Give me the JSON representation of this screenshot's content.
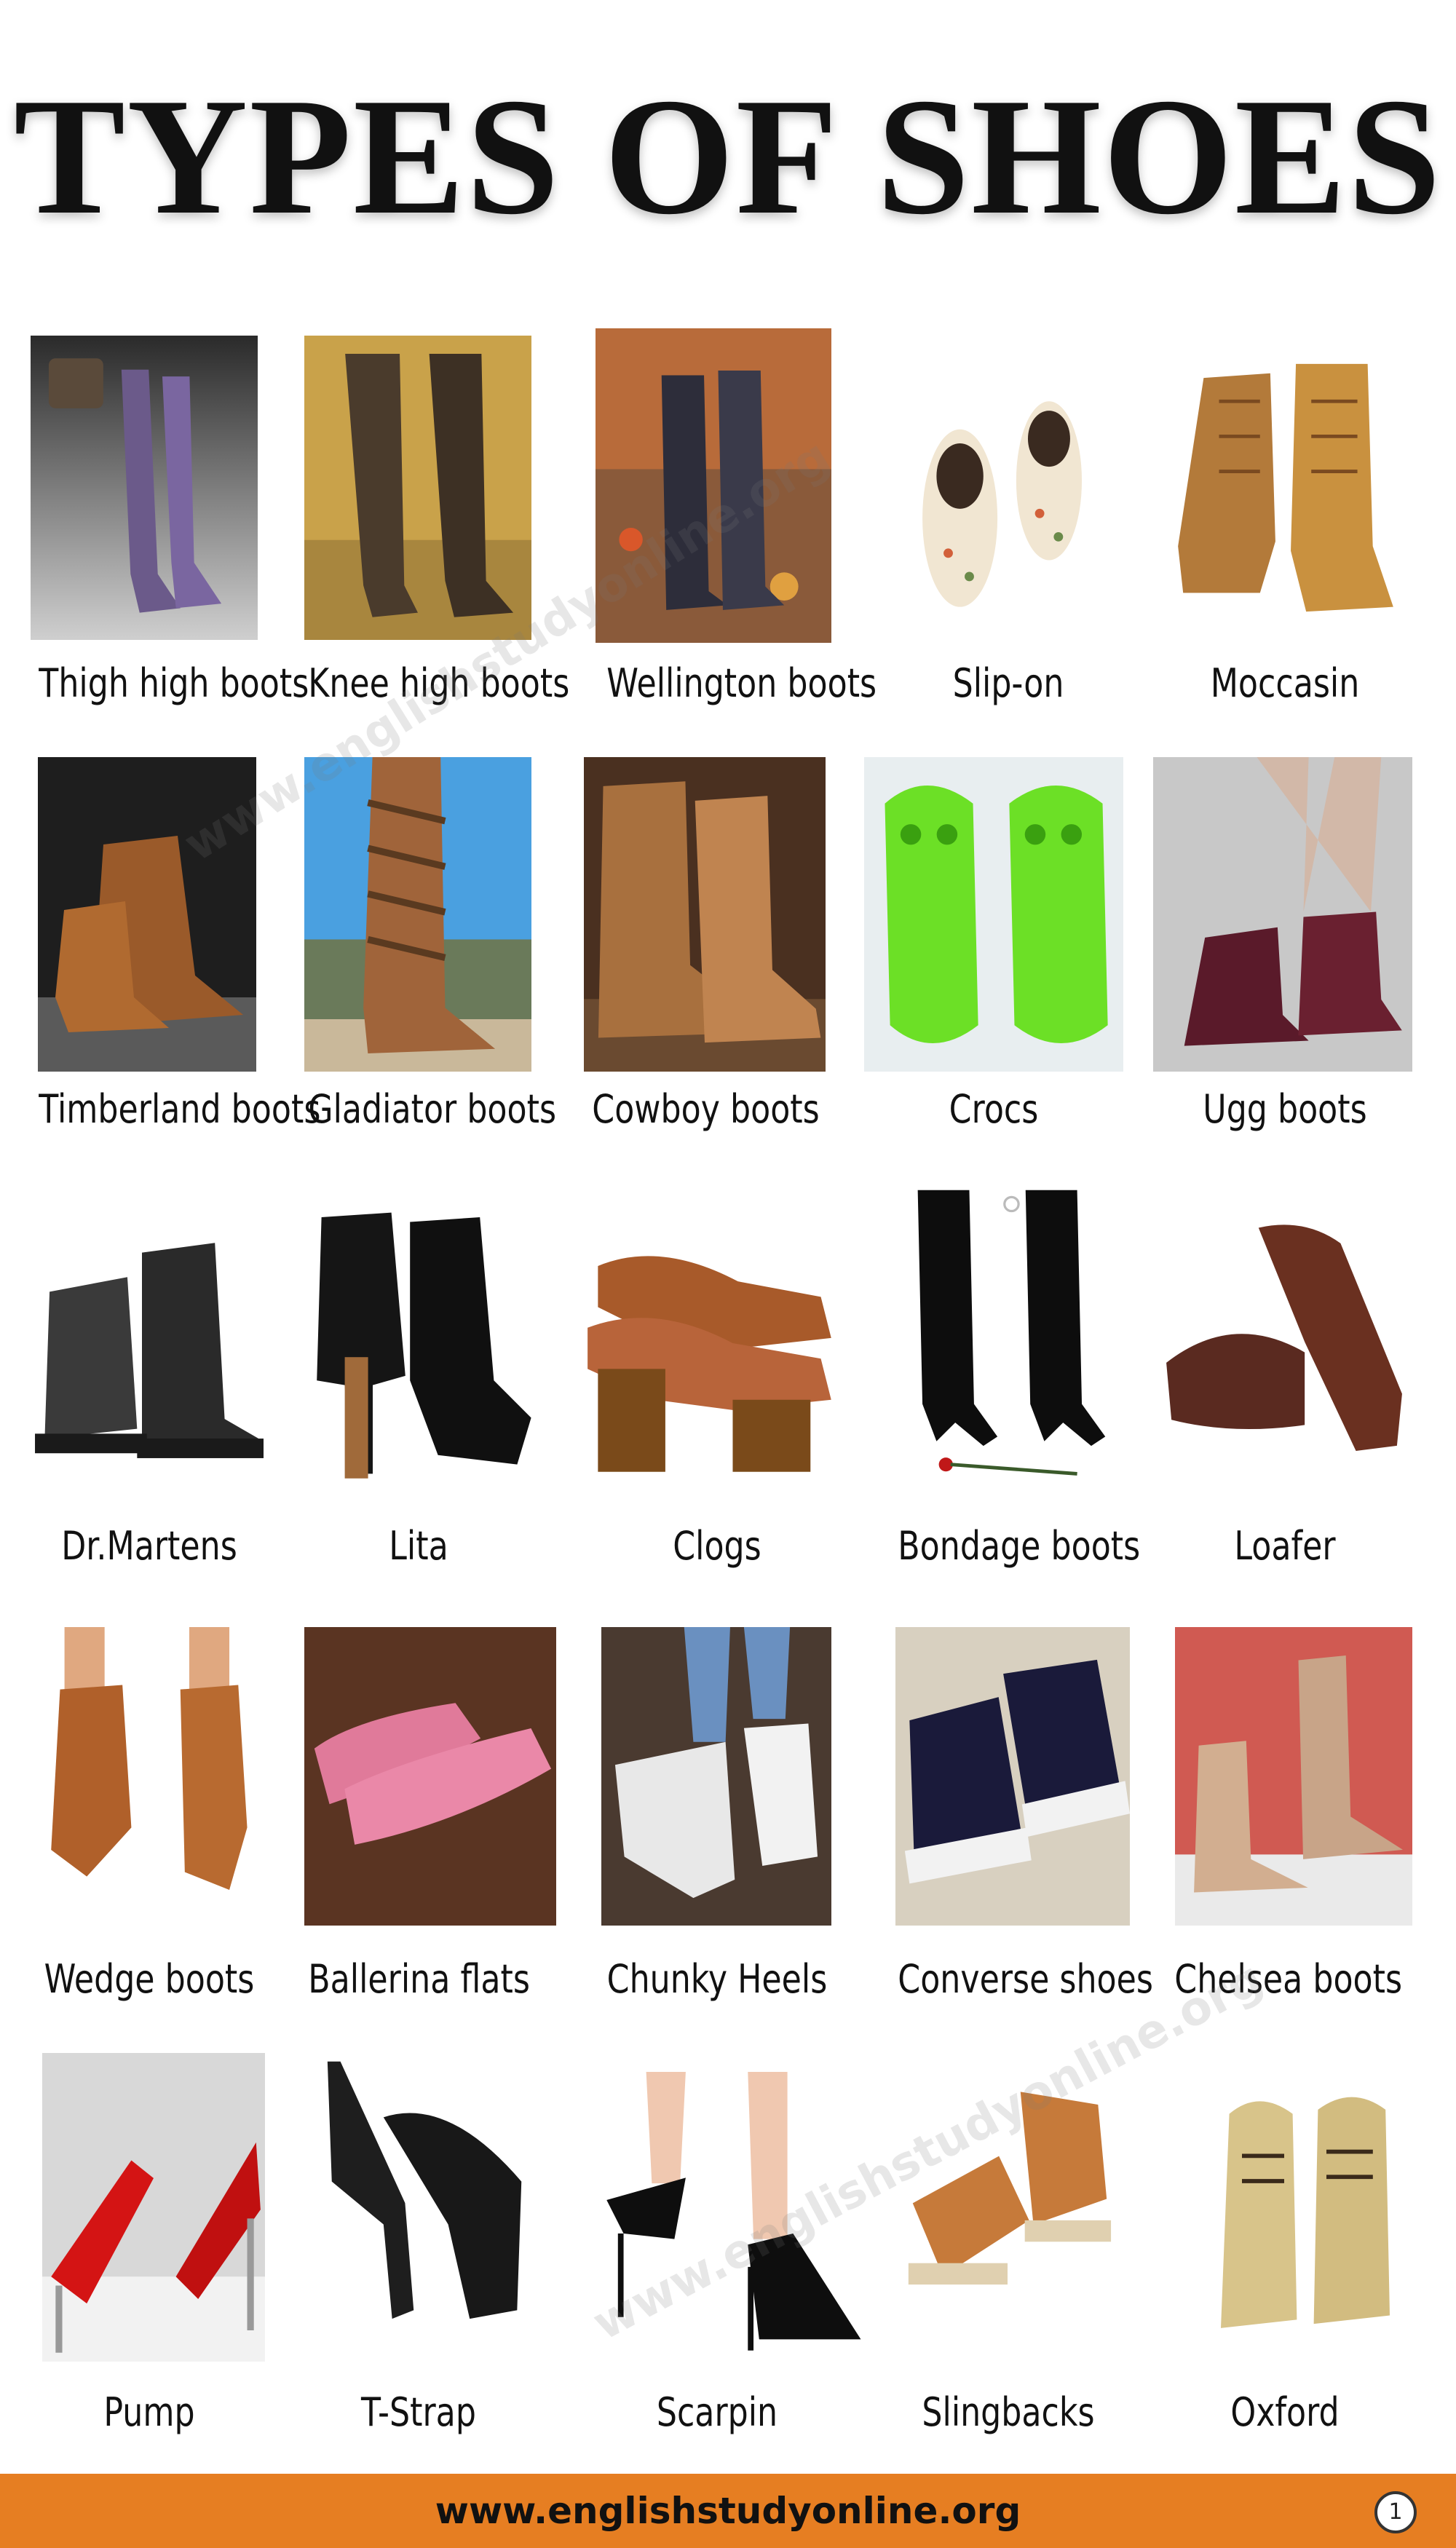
{
  "title": "TYPES OF SHOES",
  "watermark": "www.englishstudyonline.org",
  "footer": {
    "url": "www.englishstudyonline.org",
    "page": "1"
  },
  "rows": [
    {
      "items": [
        {
          "label": "Thigh high boots",
          "icon": "thigh-high-boots-image"
        },
        {
          "label": "Knee high boots",
          "icon": "knee-high-boots-image"
        },
        {
          "label": "Wellington boots",
          "icon": "wellington-boots-image"
        },
        {
          "label": "Slip-on",
          "icon": "slip-on-image"
        },
        {
          "label": "Moccasin",
          "icon": "moccasin-image"
        }
      ]
    },
    {
      "items": [
        {
          "label": "Timberland boots",
          "icon": "timberland-boots-image"
        },
        {
          "label": "Gladiator boots",
          "icon": "gladiator-boots-image"
        },
        {
          "label": "Cowboy boots",
          "icon": "cowboy-boots-image"
        },
        {
          "label": "Crocs",
          "icon": "crocs-image"
        },
        {
          "label": "Ugg boots",
          "icon": "ugg-boots-image"
        }
      ]
    },
    {
      "items": [
        {
          "label": "Dr.Martens",
          "icon": "dr-martens-image"
        },
        {
          "label": "Lita",
          "icon": "lita-image"
        },
        {
          "label": "Clogs",
          "icon": "clogs-image"
        },
        {
          "label": "Bondage boots",
          "icon": "bondage-boots-image"
        },
        {
          "label": "Loafer",
          "icon": "loafer-image"
        }
      ]
    },
    {
      "items": [
        {
          "label": "Wedge  boots",
          "icon": "wedge-boots-image"
        },
        {
          "label": "Ballerina flats",
          "icon": "ballerina-flats-image"
        },
        {
          "label": "Chunky Heels",
          "icon": "chunky-heels-image"
        },
        {
          "label": "Converse shoes",
          "icon": "converse-shoes-image"
        },
        {
          "label": "Chelsea boots",
          "icon": "chelsea-boots-image"
        }
      ]
    },
    {
      "items": [
        {
          "label": "Pump",
          "icon": "pump-image"
        },
        {
          "label": "T-Strap",
          "icon": "t-strap-image"
        },
        {
          "label": "Scarpin",
          "icon": "scarpin-image"
        },
        {
          "label": "Slingbacks",
          "icon": "slingbacks-image"
        },
        {
          "label": "Oxford",
          "icon": "oxford-image"
        }
      ]
    }
  ],
  "colors": {
    "footer_bg": "#e67e22",
    "text": "#111111"
  }
}
